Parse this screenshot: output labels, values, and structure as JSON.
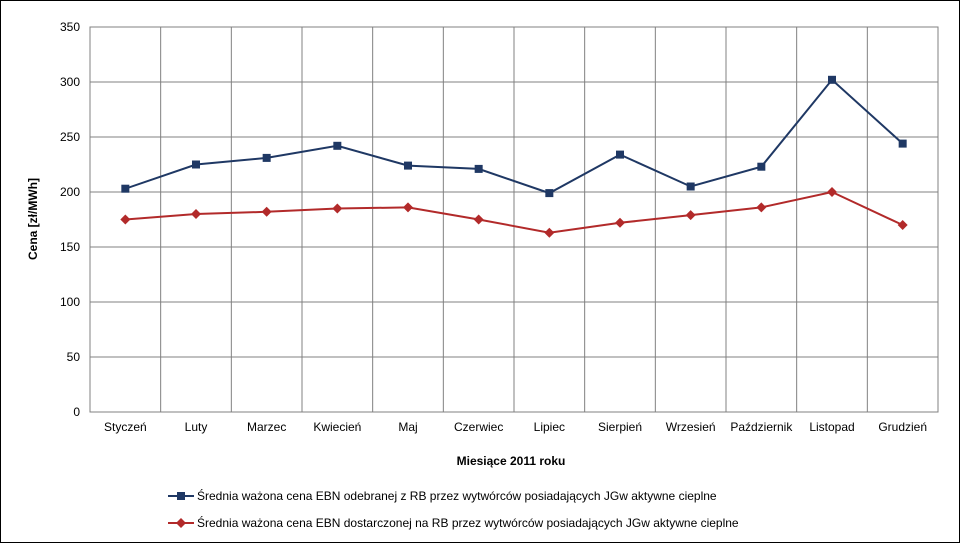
{
  "chart_data": {
    "type": "line",
    "title": "",
    "xlabel": "Miesiące 2011  roku",
    "ylabel": "Cena [zł/MWh]",
    "ylim": [
      0,
      350
    ],
    "yticks": [
      0,
      50,
      100,
      150,
      200,
      250,
      300,
      350
    ],
    "grid": true,
    "legend_position": "bottom",
    "categories": [
      "Styczeń",
      "Luty",
      "Marzec",
      "Kwiecień",
      "Maj",
      "Czerwiec",
      "Lipiec",
      "Sierpień",
      "Wrzesień",
      "Październik",
      "Listopad",
      "Grudzień"
    ],
    "series": [
      {
        "name": "Średnia ważona cena EBN odebranej z RB przez wytwórców posiadających JGw aktywne cieplne",
        "color": "#1f3864",
        "marker": "square",
        "values": [
          203,
          225,
          231,
          242,
          224,
          221,
          199,
          234,
          205,
          223,
          302,
          244
        ]
      },
      {
        "name": "Średnia ważona cena EBN dostarczonej na RB przez wytwórców posiadających JGw aktywne cieplne",
        "color": "#b22a2a",
        "marker": "diamond",
        "values": [
          175,
          180,
          182,
          185,
          186,
          175,
          163,
          172,
          179,
          186,
          200,
          170
        ]
      }
    ]
  }
}
